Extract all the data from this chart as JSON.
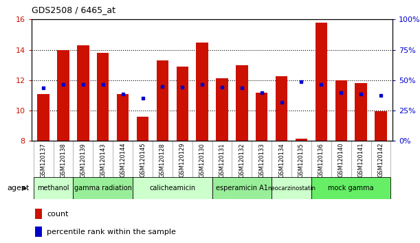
{
  "title": "GDS2508 / 6465_at",
  "samples": [
    "GSM120137",
    "GSM120138",
    "GSM120139",
    "GSM120143",
    "GSM120144",
    "GSM120145",
    "GSM120128",
    "GSM120129",
    "GSM120130",
    "GSM120131",
    "GSM120132",
    "GSM120133",
    "GSM120134",
    "GSM120135",
    "GSM120136",
    "GSM120140",
    "GSM120141",
    "GSM120142"
  ],
  "bar_heights": [
    11.1,
    14.0,
    14.3,
    13.8,
    11.1,
    9.6,
    13.3,
    12.9,
    14.5,
    12.15,
    13.0,
    11.2,
    12.25,
    8.15,
    15.8,
    12.0,
    11.8,
    9.95
  ],
  "blue_dots": [
    11.5,
    11.7,
    11.7,
    11.7,
    11.1,
    10.8,
    11.6,
    11.55,
    11.7,
    11.55,
    11.5,
    11.2,
    10.55,
    11.9,
    11.7,
    11.2,
    11.1,
    11.0
  ],
  "bar_color": "#CC1100",
  "dot_color": "#0000CC",
  "ylim_left": [
    8,
    16
  ],
  "ylim_right": [
    0,
    100
  ],
  "yticks_left": [
    8,
    10,
    12,
    14,
    16
  ],
  "yticks_right": [
    0,
    25,
    50,
    75,
    100
  ],
  "ytick_labels_right": [
    "0%",
    "25%",
    "50%",
    "75%",
    "100%"
  ],
  "agents": [
    {
      "label": "methanol",
      "start": 0,
      "end": 1,
      "color": "#ccffcc"
    },
    {
      "label": "gamma radiation",
      "start": 2,
      "end": 4,
      "color": "#99ee99"
    },
    {
      "label": "calicheamicin",
      "start": 5,
      "end": 8,
      "color": "#ccffcc"
    },
    {
      "label": "esperamicin A1",
      "start": 9,
      "end": 11,
      "color": "#99ee99"
    },
    {
      "label": "neocarzinostatin",
      "start": 12,
      "end": 13,
      "color": "#ccffcc"
    },
    {
      "label": "mock gamma",
      "start": 14,
      "end": 17,
      "color": "#66ee66"
    }
  ],
  "bar_width": 0.6,
  "ylabel_left_color": "#CC1100",
  "ylabel_right_color": "#0000CC",
  "legend_count_label": "count",
  "legend_percentile_label": "percentile rank within the sample",
  "agent_label": "agent",
  "bar_bottom": 8,
  "background_gray": "#e8e8e8"
}
